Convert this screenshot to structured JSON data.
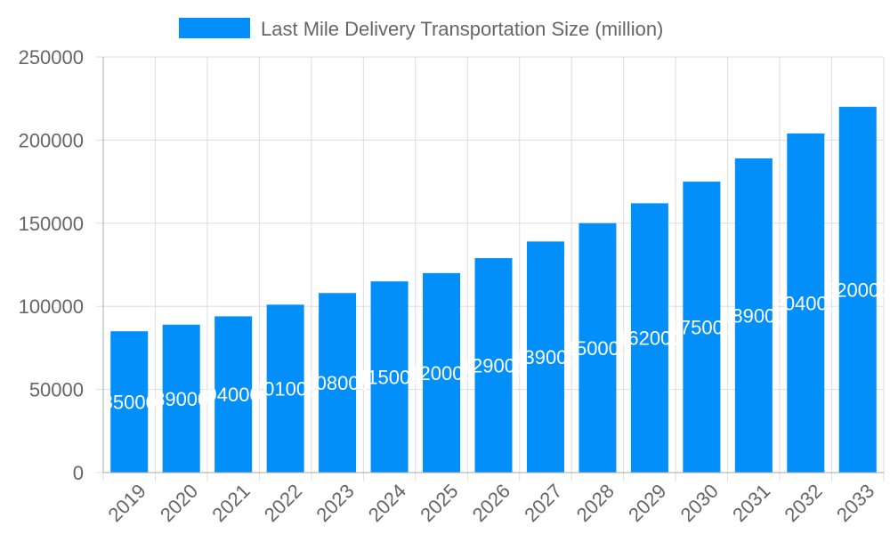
{
  "chart_data": {
    "type": "bar",
    "title": "",
    "xlabel": "",
    "ylabel": "",
    "categories": [
      "2019",
      "2020",
      "2021",
      "2022",
      "2023",
      "2024",
      "2025",
      "2026",
      "2027",
      "2028",
      "2029",
      "2030",
      "2031",
      "2032",
      "2033"
    ],
    "series": [
      {
        "name": "Last Mile Delivery Transportation Size (million)",
        "values": [
          85000,
          89000,
          94000,
          101000,
          108000,
          115000,
          120000,
          129000,
          139000,
          150000,
          162000,
          175000,
          189000,
          204000,
          220000
        ],
        "color": "#038ffa"
      }
    ],
    "ylim": [
      0,
      250000
    ],
    "yticks": [
      "0",
      "50000",
      "100000",
      "150000",
      "200000",
      "250000"
    ],
    "grid": true,
    "legend": "top-center",
    "data_labels": true,
    "data_label_color": "#ffffff"
  }
}
